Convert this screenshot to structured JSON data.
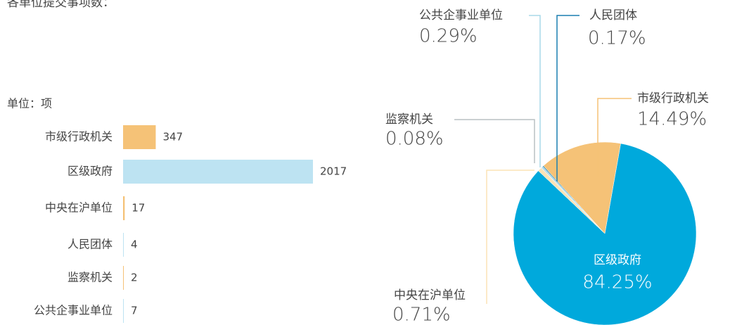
{
  "title": "各单位提交事项数：",
  "chart_data": [
    {
      "type": "hbar",
      "unit_label": "单位：项",
      "categories": [
        "市级行政机关",
        "区级政府",
        "中央在沪单位",
        "人民团体",
        "监察机关",
        "公共企事业单位"
      ],
      "values": [
        347,
        2017,
        17,
        4,
        2,
        7
      ],
      "colors": [
        "#f5c277",
        "#bde3f2",
        "#f5c277",
        "#bde3f2",
        "#f5c277",
        "#bde3f2"
      ]
    },
    {
      "type": "pie",
      "categories": [
        "区级政府",
        "中央在沪单位",
        "监察机关",
        "公共企事业单位",
        "人民团体",
        "市级行政机关"
      ],
      "values": [
        84.25,
        0.71,
        0.08,
        0.29,
        0.17,
        14.49
      ],
      "value_labels": [
        "84.25%",
        "0.71%",
        "0.08%",
        "0.29%",
        "0.17%",
        "14.49%"
      ],
      "colors": [
        "#00a9dc",
        "#fbe3b5",
        "#b9c1c4",
        "#a8d8e8",
        "#1a7fb0",
        "#f5c277"
      ]
    }
  ]
}
